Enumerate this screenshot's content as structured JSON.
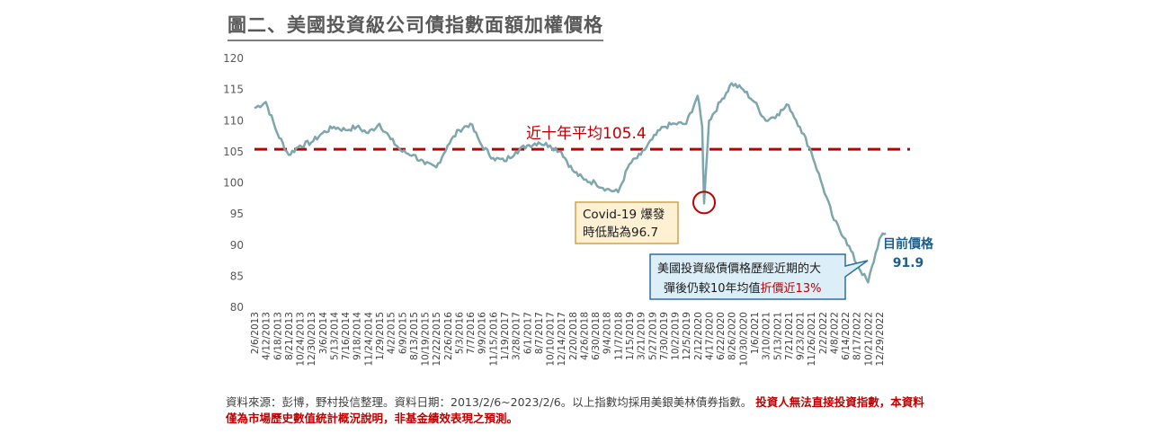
{
  "title": "圖二、美國投資級公司債指數面額加權價格",
  "chart_data": {
    "type": "line",
    "title": "圖二、美國投資級公司債指數面額加權價格",
    "xlabel": "",
    "ylabel": "",
    "ylim": [
      80,
      120
    ],
    "yticks": [
      80,
      85,
      90,
      95,
      100,
      105,
      110,
      115,
      120
    ],
    "grid": false,
    "x_tick_labels": [
      "2/6/2013",
      "4/12/2013",
      "6/18/2013",
      "8/21/2013",
      "10/24/2013",
      "12/30/2013",
      "3/6/2014",
      "5/13/2014",
      "7/16/2014",
      "9/18/2014",
      "11/24/2014",
      "1/29/2015",
      "4/2/2015",
      "6/9/2015",
      "8/13/2015",
      "10/19/2015",
      "12/22/2015",
      "2/26/2016",
      "5/3/2016",
      "7/7/2016",
      "9/9/2016",
      "11/15/2016",
      "1/19/2017",
      "3/28/2017",
      "6/1/2017",
      "8/7/2017",
      "10/10/2017",
      "12/14/2017",
      "2/20/2018",
      "4/26/2018",
      "6/30/2018",
      "9/4/2018",
      "11/7/2018",
      "1/15/2019",
      "3/21/2019",
      "5/27/2019",
      "7/30/2019",
      "10/2/2019",
      "12/5/2019",
      "2/12/2020",
      "4/17/2020",
      "6/22/2020",
      "8/26/2020",
      "10/30/2020",
      "1/6/2021",
      "3/10/2021",
      "5/13/2021",
      "7/21/2021",
      "9/23/2021",
      "11/26/2021",
      "2/2/2022",
      "4/8/2022",
      "6/14/2022",
      "8/17/2022",
      "10/21/2022",
      "12/29/2022"
    ],
    "series": [
      {
        "color": "#7ea6ad",
        "x": [
          "2/6/2013",
          "4/12/2013",
          "6/18/2013",
          "8/21/2013",
          "10/24/2013",
          "12/30/2013",
          "3/6/2014",
          "5/13/2014",
          "7/16/2014",
          "9/18/2014",
          "11/24/2014",
          "1/29/2015",
          "4/2/2015",
          "6/9/2015",
          "8/13/2015",
          "10/19/2015",
          "12/22/2015",
          "2/26/2016",
          "5/3/2016",
          "7/7/2016",
          "9/9/2016",
          "11/15/2016",
          "1/19/2017",
          "3/28/2017",
          "6/1/2017",
          "8/7/2017",
          "10/10/2017",
          "12/14/2017",
          "2/20/2018",
          "4/26/2018",
          "6/30/2018",
          "9/4/2018",
          "11/7/2018",
          "1/15/2019",
          "3/21/2019",
          "5/27/2019",
          "7/30/2019",
          "10/2/2019",
          "12/5/2019",
          "2/12/2020",
          "3/9/2020",
          "3/20/2020",
          "4/17/2020",
          "6/22/2020",
          "8/26/2020",
          "10/30/2020",
          "1/6/2021",
          "3/10/2021",
          "5/13/2021",
          "7/21/2021",
          "9/23/2021",
          "11/26/2021",
          "2/2/2022",
          "4/8/2022",
          "6/14/2022",
          "8/17/2022",
          "10/21/2022",
          "12/29/2022",
          "2/6/2023"
        ],
        "values": [
          112,
          113,
          108,
          104.5,
          106,
          106.5,
          108,
          109,
          108.5,
          109,
          108,
          109.5,
          107,
          105,
          104.5,
          103,
          102.5,
          106,
          108.5,
          109.5,
          106,
          104,
          103.5,
          105,
          106,
          106.5,
          106,
          105,
          102,
          100.5,
          100,
          99,
          98.5,
          103,
          104.5,
          107,
          109,
          109.5,
          109.5,
          114,
          109,
          96.7,
          110,
          113,
          116,
          115,
          113,
          110,
          111,
          112.5,
          109,
          105,
          99.5,
          94,
          91,
          87,
          84,
          91,
          91.9
        ]
      }
    ],
    "reference_line": {
      "value": 105.4,
      "label": "近十年平均105.4",
      "color": "#c00000"
    },
    "annotations": [
      {
        "text_line1": "Covid-19 爆發",
        "text_line2_prefix": "時低點為",
        "text_line2_value": "96.7"
      },
      {
        "text_line1": "美國投資級債價格歷經近期的大",
        "text_line2_prefix": "彈後仍較10年均值",
        "text_line2_emph": "折價近13%"
      },
      {
        "label": "目前價格",
        "value": "91.9"
      }
    ]
  },
  "footnote": {
    "normal": "資料來源：彭博，野村投信整理。資料日期：2013/2/6~2023/2/6。以上指數均採用美銀美林債券指數。",
    "warning": "投資人無法直接投資指數，本資料僅為市場歷史數值統計概況說明，非基金績效表現之預測。"
  }
}
